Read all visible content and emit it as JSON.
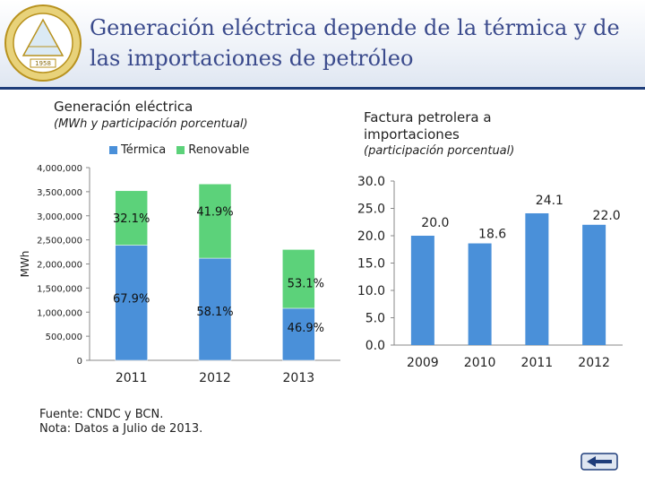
{
  "header": {
    "title": "Generación eléctrica depende de la térmica y de las importaciones de petróleo",
    "logo_text": "1958",
    "logo_color": "#c9a227"
  },
  "left_chart": {
    "title": "Generación eléctrica",
    "subtitle": "(MWh y participación porcentual)",
    "ylabel": "MWh",
    "legend": [
      {
        "name": "Térmica",
        "color": "#4a90d9"
      },
      {
        "name": "Renovable",
        "color": "#5cd27a"
      }
    ]
  },
  "right_chart": {
    "title": "Factura petrolera a importaciones",
    "subtitle": "(participación porcentual)"
  },
  "footer": {
    "source": "Fuente: CNDC y BCN.",
    "note": "Nota: Datos a Julio de 2013."
  },
  "colors": {
    "thermal": "#4a90d9",
    "renewable": "#5cd27a",
    "oil": "#4a90d9",
    "accent": "#1f3d7a"
  },
  "chart_data": [
    {
      "type": "bar",
      "stacked": true,
      "title": "Generación eléctrica",
      "subtitle": "(MWh y participación porcentual)",
      "ylabel": "MWh",
      "categories": [
        "2011",
        "2012",
        "2013"
      ],
      "ylim": [
        0,
        4000000
      ],
      "yticks": [
        "0",
        "500,000",
        "1,000,000",
        "1,500,000",
        "2,000,000",
        "2,500,000",
        "3,000,000",
        "3,500,000",
        "4,000,000"
      ],
      "series": [
        {
          "name": "Térmica",
          "values": [
            2390000,
            2120000,
            1080000
          ],
          "labels": [
            "67.9%",
            "58.1%",
            "46.9%"
          ]
        },
        {
          "name": "Renovable",
          "values": [
            1130000,
            1540000,
            1220000
          ],
          "labels": [
            "32.1%",
            "41.9%",
            "53.1%"
          ]
        }
      ],
      "legend": "top"
    },
    {
      "type": "bar",
      "categories": [
        "2009",
        "2010",
        "2011",
        "2012"
      ],
      "values": [
        20.0,
        18.6,
        24.1,
        22.0
      ],
      "labels": [
        "20.0",
        "18.6",
        "24.1",
        "22.0"
      ],
      "ylim": [
        0,
        30
      ],
      "yticks": [
        "0.0",
        "5.0",
        "10.0",
        "15.0",
        "20.0",
        "25.0",
        "30.0"
      ]
    }
  ]
}
